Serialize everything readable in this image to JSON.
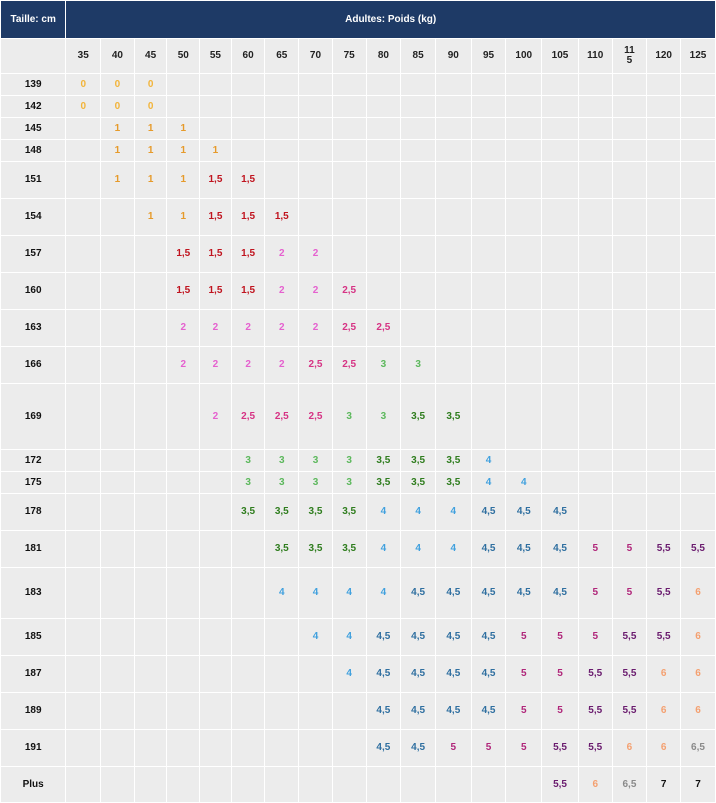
{
  "table": {
    "corner_label": "Taille: cm",
    "title": "Adultes: Poids (kg)",
    "weights": [
      "35",
      "40",
      "45",
      "50",
      "55",
      "60",
      "65",
      "70",
      "75",
      "80",
      "85",
      "90",
      "95",
      "100",
      "105",
      "110",
      "11\n5",
      "120",
      "125"
    ],
    "rows": [
      {
        "label": "139",
        "cells": [
          "0",
          "0",
          "0",
          "",
          "",
          "",
          "",
          "",
          "",
          "",
          "",
          "",
          "",
          "",
          "",
          "",
          "",
          "",
          ""
        ]
      },
      {
        "label": "142",
        "cells": [
          "0",
          "0",
          "0",
          "",
          "",
          "",
          "",
          "",
          "",
          "",
          "",
          "",
          "",
          "",
          "",
          "",
          "",
          "",
          ""
        ]
      },
      {
        "label": "145",
        "cells": [
          "",
          "1",
          "1",
          "1",
          "",
          "",
          "",
          "",
          "",
          "",
          "",
          "",
          "",
          "",
          "",
          "",
          "",
          "",
          ""
        ]
      },
      {
        "label": "148",
        "cells": [
          "",
          "1",
          "1",
          "1",
          "1",
          "",
          "",
          "",
          "",
          "",
          "",
          "",
          "",
          "",
          "",
          "",
          "",
          "",
          ""
        ]
      },
      {
        "label": "151",
        "cells": [
          "",
          "1",
          "1",
          "1",
          "1,5",
          "1,5",
          "",
          "",
          "",
          "",
          "",
          "",
          "",
          "",
          "",
          "",
          "",
          "",
          ""
        ]
      },
      {
        "label": "154",
        "cells": [
          "",
          "",
          "1",
          "1",
          "1,5",
          "1,5",
          "1,5",
          "",
          "",
          "",
          "",
          "",
          "",
          "",
          "",
          "",
          "",
          "",
          ""
        ]
      },
      {
        "label": "157",
        "cells": [
          "",
          "",
          "",
          "1,5",
          "1,5",
          "1,5",
          "2",
          "2",
          "",
          "",
          "",
          "",
          "",
          "",
          "",
          "",
          "",
          "",
          ""
        ]
      },
      {
        "label": "160",
        "cells": [
          "",
          "",
          "",
          "1,5",
          "1,5",
          "1,5",
          "2",
          "2",
          "2,5",
          "",
          "",
          "",
          "",
          "",
          "",
          "",
          "",
          "",
          ""
        ]
      },
      {
        "label": "163",
        "cells": [
          "",
          "",
          "",
          "2",
          "2",
          "2",
          "2",
          "2",
          "2,5",
          "2,5",
          "",
          "",
          "",
          "",
          "",
          "",
          "",
          "",
          ""
        ]
      },
      {
        "label": "166",
        "cells": [
          "",
          "",
          "",
          "2",
          "2",
          "2",
          "2",
          "2,5",
          "2,5",
          "3",
          "3",
          "",
          "",
          "",
          "",
          "",
          "",
          "",
          ""
        ]
      },
      {
        "label": "169",
        "cells": [
          "",
          "",
          "",
          "",
          "2",
          "2,5",
          "2,5",
          "2,5",
          "3",
          "3",
          "3,5",
          "3,5",
          "",
          "",
          "",
          "",
          "",
          "",
          ""
        ]
      },
      {
        "label": "172",
        "cells": [
          "",
          "",
          "",
          "",
          "",
          "3",
          "3",
          "3",
          "3",
          "3,5",
          "3,5",
          "3,5",
          "4",
          "",
          "",
          "",
          "",
          "",
          ""
        ]
      },
      {
        "label": "175",
        "cells": [
          "",
          "",
          "",
          "",
          "",
          "3",
          "3",
          "3",
          "3",
          "3,5",
          "3,5",
          "3,5",
          "4",
          "4",
          "",
          "",
          "",
          "",
          ""
        ]
      },
      {
        "label": "178",
        "cells": [
          "",
          "",
          "",
          "",
          "",
          "3,5",
          "3,5",
          "3,5",
          "3,5",
          "4",
          "4",
          "4",
          "4,5",
          "4,5",
          "4,5",
          "",
          "",
          "",
          ""
        ]
      },
      {
        "label": "181",
        "cells": [
          "",
          "",
          "",
          "",
          "",
          "",
          "3,5",
          "3,5",
          "3,5",
          "4",
          "4",
          "4",
          "4,5",
          "4,5",
          "4,5",
          "5",
          "5",
          "5,5",
          "5,5"
        ]
      },
      {
        "label": "183",
        "cells": [
          "",
          "",
          "",
          "",
          "",
          "",
          "4",
          "4",
          "4",
          "4",
          "4,5",
          "4,5",
          "4,5",
          "4,5",
          "4,5",
          "5",
          "5",
          "5,5",
          "6"
        ]
      },
      {
        "label": "185",
        "cells": [
          "",
          "",
          "",
          "",
          "",
          "",
          "",
          "4",
          "4",
          "4,5",
          "4,5",
          "4,5",
          "4,5",
          "5",
          "5",
          "5",
          "5,5",
          "5,5",
          "6"
        ]
      },
      {
        "label": "187",
        "cells": [
          "",
          "",
          "",
          "",
          "",
          "",
          "",
          "",
          "4",
          "4,5",
          "4,5",
          "4,5",
          "4,5",
          "5",
          "5",
          "5,5",
          "5,5",
          "6",
          "6"
        ]
      },
      {
        "label": "189",
        "cells": [
          "",
          "",
          "",
          "",
          "",
          "",
          "",
          "",
          "",
          "4,5",
          "4,5",
          "4,5",
          "4,5",
          "5",
          "5",
          "5,5",
          "5,5",
          "6",
          "6"
        ]
      },
      {
        "label": "191",
        "cells": [
          "",
          "",
          "",
          "",
          "",
          "",
          "",
          "",
          "",
          "4,5",
          "4,5",
          "5",
          "5",
          "5",
          "5,5",
          "5,5",
          "6",
          "6",
          "6,5"
        ]
      },
      {
        "label": "Plus",
        "cells": [
          "",
          "",
          "",
          "",
          "",
          "",
          "",
          "",
          "",
          "",
          "",
          "",
          "",
          "",
          "5,5",
          "6",
          "6,5",
          "7",
          "7"
        ]
      }
    ]
  },
  "value_colors": {
    "0": "#f2b43a",
    "1": "#e69a2a",
    "1,5": "#c0141f",
    "2": "#e561cf",
    "2,5": "#d63384",
    "3": "#5cb85c",
    "3,5": "#2f7d1e",
    "4": "#3fa0de",
    "4,5": "#2f6fa0",
    "5": "#b0267a",
    "5,5": "#6a1b6e",
    "6": "#f4a070",
    "6,5": "#8a8a8a",
    "7": "#111111"
  },
  "header_color": "#1e3a66"
}
